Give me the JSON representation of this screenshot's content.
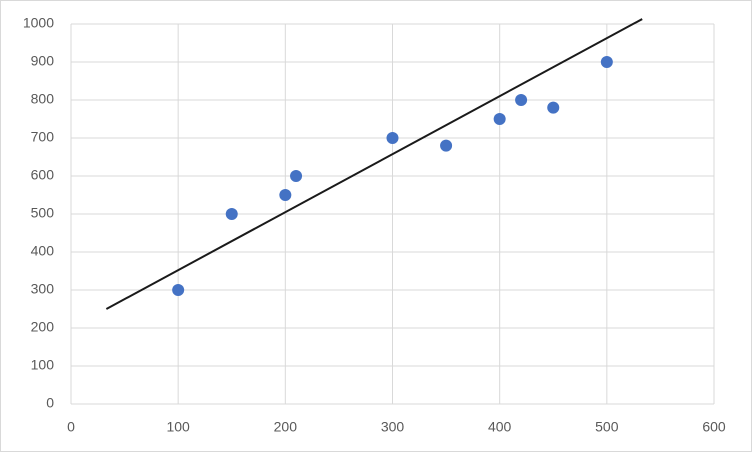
{
  "chart_data": {
    "type": "scatter",
    "x": [
      100,
      150,
      200,
      210,
      300,
      350,
      400,
      420,
      450,
      500
    ],
    "values": [
      300,
      500,
      550,
      600,
      700,
      680,
      750,
      800,
      780,
      900
    ],
    "color": "#4472c4",
    "trendline": {
      "x": [
        33,
        533
      ],
      "values": [
        250,
        1013
      ],
      "color": "#1a1a1a"
    },
    "xlim": [
      0,
      600
    ],
    "xticks": [
      0,
      100,
      200,
      300,
      400,
      500,
      600
    ],
    "ylim": [
      0,
      1000
    ],
    "yticks": [
      0,
      100,
      200,
      300,
      400,
      500,
      600,
      700,
      800,
      900,
      1000
    ],
    "grid": true
  }
}
